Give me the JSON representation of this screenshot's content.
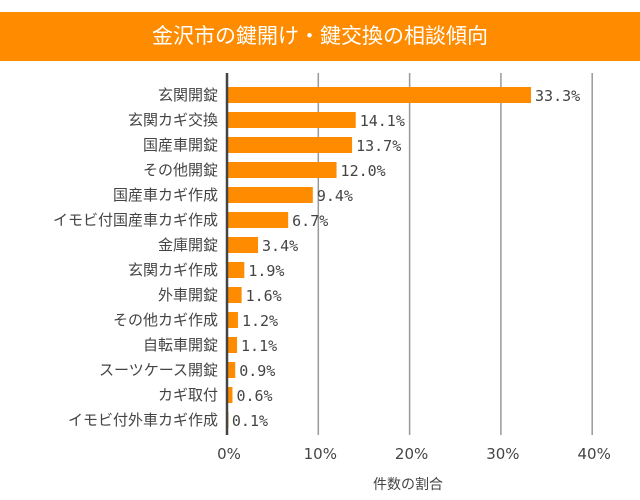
{
  "chart_data": {
    "type": "bar",
    "orientation": "horizontal",
    "title": "金沢市の鍵開け・鍵交換の相談傾向",
    "xlabel": "件数の割合",
    "ylabel": "",
    "categories": [
      "玄関開錠",
      "玄関カギ交換",
      "国産車開錠",
      "その他開錠",
      "国産車カギ作成",
      "イモビ付国産車カギ作成",
      "金庫開錠",
      "玄関カギ作成",
      "外車開錠",
      "その他カギ作成",
      "自転車開錠",
      "スーツケース開錠",
      "カギ取付",
      "イモビ付外車カギ作成"
    ],
    "values": [
      33.3,
      14.1,
      13.7,
      12.0,
      9.4,
      6.7,
      3.4,
      1.9,
      1.6,
      1.2,
      1.1,
      0.9,
      0.6,
      0.1
    ],
    "value_labels": [
      "33.3%",
      "14.1%",
      "13.7%",
      "12.0%",
      "9.4%",
      "6.7%",
      "3.4%",
      "1.9%",
      "1.6%",
      "1.2%",
      "1.1%",
      "0.9%",
      "0.6%",
      "0.1%"
    ],
    "xlim": [
      0,
      40
    ],
    "xticks": [
      0,
      10,
      20,
      30,
      40
    ],
    "xtick_labels": [
      "0%",
      "10%",
      "20%",
      "30%",
      "40%"
    ],
    "grid": "vertical",
    "legend": "none",
    "colors": {
      "bar": "#ff8c00",
      "title_bg": "#ff8c00",
      "grid": "#999999",
      "axis": "#444444"
    }
  }
}
